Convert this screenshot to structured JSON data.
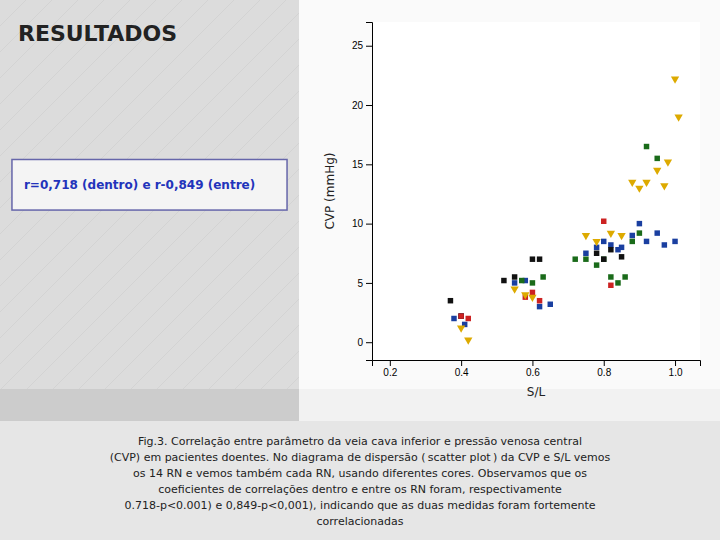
{
  "chart_data": {
    "type": "scatter",
    "title": "RESULTADOS",
    "xlabel": "S/L",
    "ylabel": "CVP (mmHg)",
    "xlim": [
      0.15,
      1.07
    ],
    "ylim": [
      -1.5,
      27
    ],
    "xticks": [
      0.2,
      0.4,
      0.6,
      0.8,
      {
        "value": 1.0,
        "label": "1.0"
      }
    ],
    "yticks": [
      0,
      5,
      10,
      15,
      20,
      25
    ],
    "grid": false,
    "annotations": [
      "r=0,718 (dentro) e r-0,849 (entre)",
      "Fig.3. Correlação entre parâmetro da veia cava inferior  e pressão venosa central",
      "(CVP) em pacientes doentes. No diagrama de dispersão ( scatter plot ) da CVP e S/L vemos",
      "os 14 RN e vemos também cada RN, usando diferentes cores. Observamos que os",
      "coeficientes de correlações dentro e entre os RN foram, respectivamente",
      "0.718-p<0.001) e 0,849-p<0,001), indicando que as duas medidas foram fortemente",
      "correlacionadas"
    ],
    "series": [
      {
        "color": "#1a3fa0",
        "marker": "square",
        "x": [
          0.38,
          0.4,
          0.41,
          0.55,
          0.58,
          0.62,
          0.65,
          0.75,
          0.78,
          0.8,
          0.82,
          0.84,
          0.85,
          0.88,
          0.9,
          0.92,
          0.95,
          0.97,
          1.0
        ],
        "values": [
          2.0,
          2.2,
          1.5,
          5.0,
          5.2,
          3.0,
          3.2,
          7.5,
          8.0,
          8.5,
          8.2,
          7.8,
          8.0,
          9.0,
          10.0,
          8.5,
          9.2,
          8.2,
          8.5
        ]
      },
      {
        "color": "#1a6b1a",
        "marker": "square",
        "x": [
          0.57,
          0.6,
          0.63,
          0.72,
          0.75,
          0.78,
          0.8,
          0.82,
          0.84,
          0.86,
          0.88,
          0.9,
          0.92,
          0.95
        ],
        "values": [
          5.2,
          5.0,
          5.5,
          7.0,
          7.0,
          6.5,
          7.0,
          5.5,
          5.0,
          5.5,
          8.5,
          9.2,
          16.5,
          15.5
        ]
      },
      {
        "color": "#111111",
        "marker": "square",
        "x": [
          0.37,
          0.4,
          0.52,
          0.55,
          0.6,
          0.62,
          0.78,
          0.8,
          0.82,
          0.85
        ],
        "values": [
          3.5,
          2.2,
          5.2,
          5.5,
          7.0,
          7.0,
          7.5,
          7.0,
          7.8,
          7.2
        ]
      },
      {
        "color": "#cc2222",
        "marker": "square",
        "x": [
          0.4,
          0.42,
          0.58,
          0.6,
          0.62,
          0.8,
          0.82
        ],
        "values": [
          2.2,
          2.0,
          3.8,
          4.2,
          3.5,
          10.2,
          4.8
        ]
      },
      {
        "color": "#ddaa00",
        "marker": "triangle-down",
        "x": [
          0.4,
          0.42,
          0.55,
          0.58,
          0.6,
          0.75,
          0.78,
          0.82,
          0.85,
          0.88,
          0.9,
          0.92,
          0.95,
          0.97,
          1.0,
          1.01,
          0.98
        ],
        "values": [
          1.2,
          0.2,
          4.5,
          4.0,
          3.8,
          9.0,
          8.5,
          9.2,
          9.0,
          13.5,
          13.0,
          13.5,
          14.5,
          13.2,
          22.2,
          19.0,
          15.2
        ]
      }
    ]
  }
}
